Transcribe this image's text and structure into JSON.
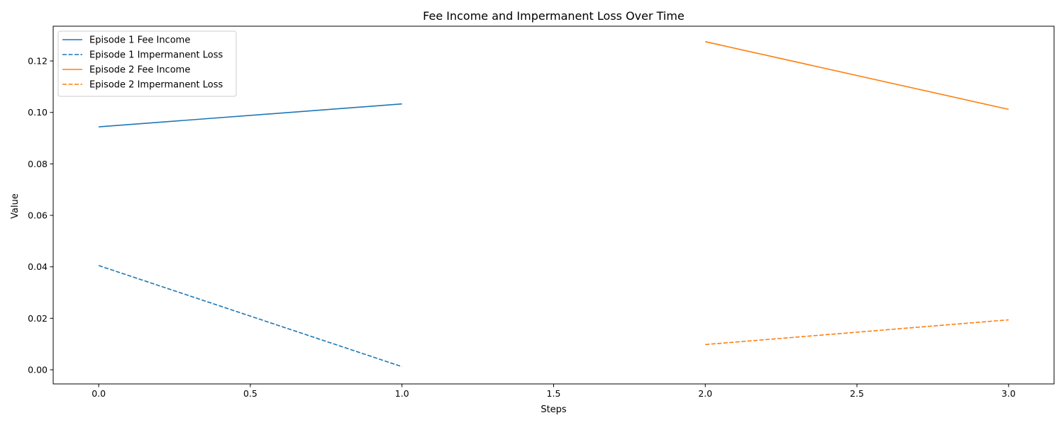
{
  "chart_data": {
    "type": "line",
    "title": "Fee Income and Impermanent Loss Over Time",
    "xlabel": "Steps",
    "ylabel": "Value",
    "xlim": [
      -0.15,
      3.15
    ],
    "ylim": [
      -0.0055,
      0.1335
    ],
    "x_ticks": [
      0.0,
      0.5,
      1.0,
      1.5,
      2.0,
      2.5,
      3.0
    ],
    "x_tick_labels": [
      "0.0",
      "0.5",
      "1.0",
      "1.5",
      "2.0",
      "2.5",
      "3.0"
    ],
    "y_ticks": [
      0.0,
      0.02,
      0.04,
      0.06,
      0.08,
      0.1,
      0.12
    ],
    "y_tick_labels": [
      "0.00",
      "0.02",
      "0.04",
      "0.06",
      "0.08",
      "0.10",
      "0.12"
    ],
    "grid": false,
    "legend_position": "top-left",
    "series": [
      {
        "name": "Episode 1 Fee Income",
        "x": [
          0,
          1
        ],
        "y": [
          0.0944,
          0.1033
        ],
        "color": "#1f77b4",
        "style": "solid"
      },
      {
        "name": "Episode 1 Impermanent Loss",
        "x": [
          0,
          1
        ],
        "y": [
          0.0405,
          0.0012
        ],
        "color": "#1f77b4",
        "style": "dashed"
      },
      {
        "name": "Episode 2 Fee Income",
        "x": [
          2,
          3
        ],
        "y": [
          0.1275,
          0.1012
        ],
        "color": "#ff7f0e",
        "style": "solid"
      },
      {
        "name": "Episode 2 Impermanent Loss",
        "x": [
          2,
          3
        ],
        "y": [
          0.0098,
          0.0194
        ],
        "color": "#ff7f0e",
        "style": "dashed"
      }
    ]
  }
}
